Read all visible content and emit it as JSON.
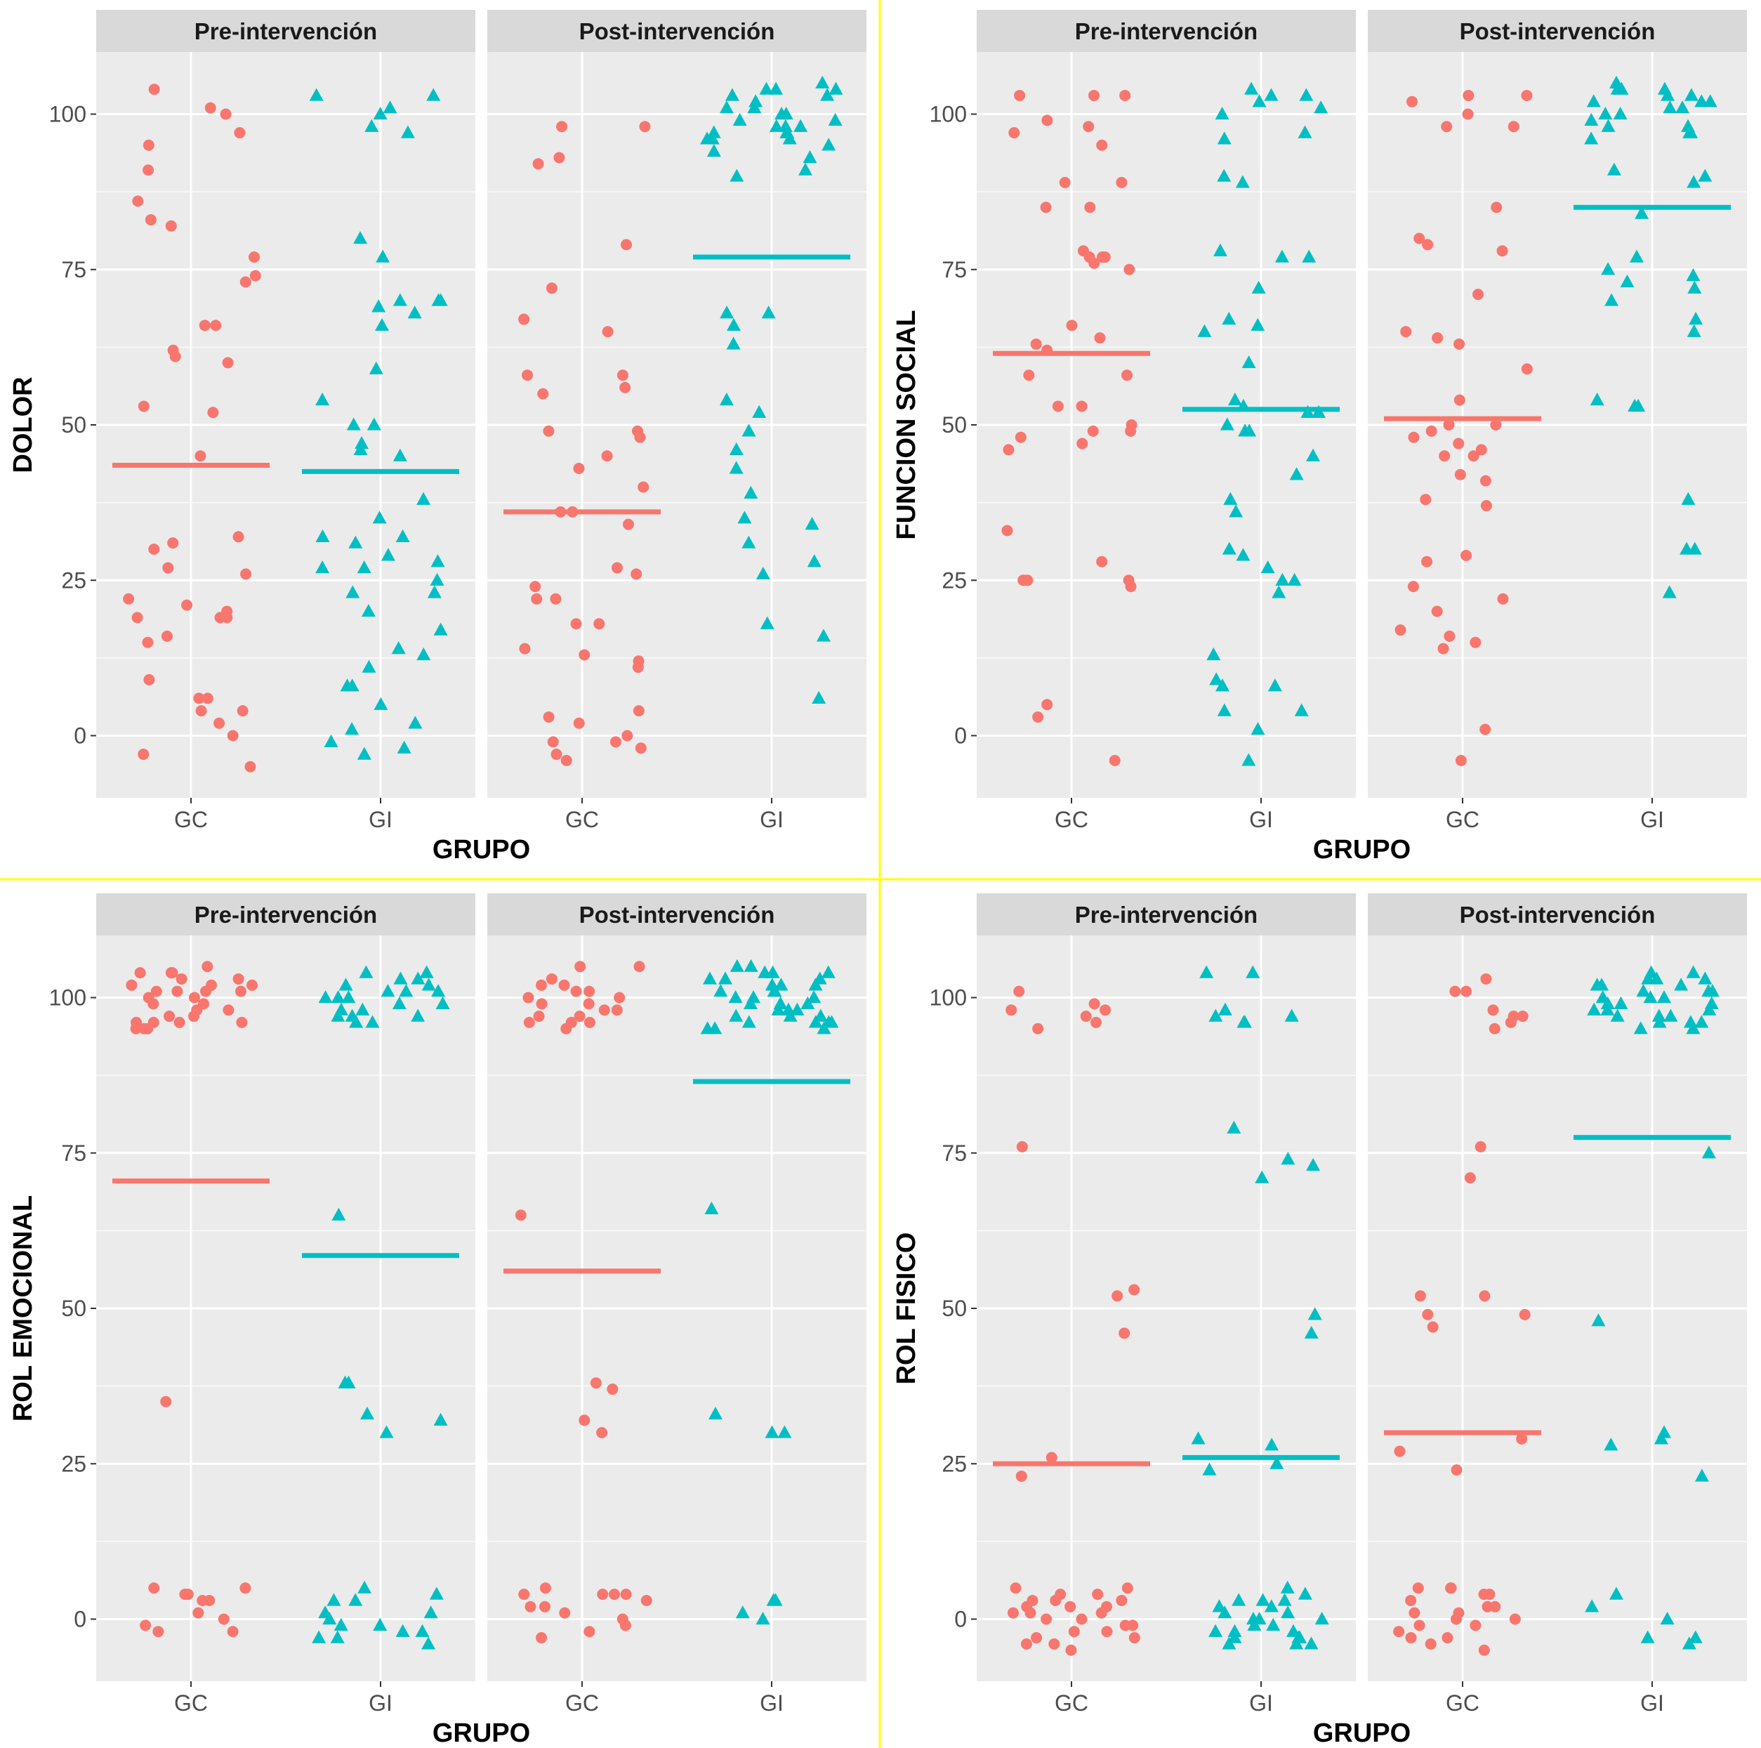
{
  "colors": {
    "GC": "#F8766D",
    "GI": "#00BFC4",
    "divider": "#FFFF00",
    "panel": "#EBEBEB",
    "strip": "#D9D9D9",
    "grid": "#FFFFFF"
  },
  "chart_data": [
    {
      "type": "scatter",
      "ylabel": "DOLOR",
      "xlabel": "GRUPO",
      "facets": [
        "Pre-intervención",
        "Post-intervención"
      ],
      "categories": [
        "GC",
        "GI"
      ],
      "y_ticks": [
        0,
        25,
        50,
        75,
        100
      ],
      "ylim": [
        -10,
        110
      ],
      "series": [
        {
          "facet": "Pre-intervención",
          "group": "GC",
          "marker": "circle",
          "mean": 43.5,
          "values": [
            104,
            101,
            100,
            97,
            95,
            91,
            86,
            83,
            82,
            77,
            74,
            73,
            66,
            66,
            62,
            61,
            60,
            53,
            52,
            45,
            32,
            31,
            30,
            27,
            26,
            22,
            21,
            20,
            19,
            19,
            19,
            16,
            15,
            9,
            6,
            6,
            4,
            4,
            2,
            0,
            -3,
            -5
          ]
        },
        {
          "facet": "Pre-intervención",
          "group": "GI",
          "marker": "triangle",
          "mean": 42.5,
          "values": [
            103,
            103,
            101,
            100,
            98,
            97,
            80,
            77,
            70,
            70,
            70,
            69,
            68,
            66,
            59,
            54,
            50,
            50,
            47,
            46,
            45,
            38,
            35,
            32,
            32,
            31,
            29,
            28,
            27,
            27,
            25,
            23,
            23,
            20,
            17,
            14,
            13,
            11,
            8,
            8,
            5,
            2,
            1,
            -1,
            -2,
            -3
          ]
        },
        {
          "facet": "Post-intervención",
          "group": "GC",
          "marker": "circle",
          "mean": 36,
          "values": [
            98,
            98,
            93,
            92,
            79,
            72,
            67,
            65,
            58,
            58,
            56,
            55,
            49,
            49,
            48,
            45,
            43,
            40,
            36,
            36,
            34,
            27,
            26,
            24,
            22,
            22,
            18,
            18,
            14,
            13,
            12,
            11,
            4,
            3,
            2,
            0,
            -1,
            -1,
            -2,
            -3,
            -4
          ]
        },
        {
          "facet": "Post-intervención",
          "group": "GI",
          "marker": "triangle",
          "mean": 77,
          "values": [
            105,
            104,
            104,
            104,
            103,
            103,
            102,
            101,
            101,
            100,
            100,
            99,
            99,
            98,
            98,
            98,
            97,
            97,
            97,
            96,
            96,
            96,
            95,
            94,
            93,
            91,
            90,
            68,
            68,
            66,
            63,
            54,
            52,
            49,
            46,
            43,
            39,
            35,
            34,
            31,
            28,
            26,
            18,
            16,
            6
          ]
        }
      ]
    },
    {
      "type": "scatter",
      "ylabel": "FUNCION SOCIAL",
      "xlabel": "GRUPO",
      "facets": [
        "Pre-intervención",
        "Post-intervención"
      ],
      "categories": [
        "GC",
        "GI"
      ],
      "y_ticks": [
        0,
        25,
        50,
        75,
        100
      ],
      "ylim": [
        -10,
        110
      ],
      "series": [
        {
          "facet": "Pre-intervención",
          "group": "GC",
          "marker": "circle",
          "mean": 61.5,
          "values": [
            103,
            103,
            103,
            99,
            98,
            97,
            95,
            89,
            89,
            85,
            85,
            78,
            77,
            77,
            77,
            76,
            75,
            66,
            64,
            63,
            62,
            58,
            58,
            53,
            53,
            50,
            49,
            49,
            48,
            47,
            46,
            33,
            28,
            25,
            25,
            25,
            24,
            5,
            3,
            -4
          ]
        },
        {
          "facet": "Pre-intervención",
          "group": "GI",
          "marker": "triangle",
          "mean": 52.5,
          "values": [
            104,
            103,
            103,
            102,
            101,
            100,
            97,
            96,
            90,
            89,
            78,
            77,
            77,
            72,
            67,
            66,
            65,
            60,
            54,
            53,
            52,
            52,
            50,
            49,
            49,
            45,
            42,
            38,
            36,
            30,
            29,
            27,
            25,
            25,
            23,
            13,
            9,
            8,
            8,
            4,
            4,
            1,
            -4
          ]
        },
        {
          "facet": "Post-intervención",
          "group": "GC",
          "marker": "circle",
          "mean": 51,
          "values": [
            103,
            103,
            102,
            100,
            98,
            98,
            85,
            80,
            79,
            78,
            71,
            65,
            64,
            63,
            59,
            54,
            50,
            50,
            49,
            48,
            47,
            46,
            45,
            45,
            42,
            41,
            38,
            37,
            29,
            28,
            24,
            22,
            20,
            17,
            16,
            15,
            14,
            1,
            -4
          ]
        },
        {
          "facet": "Post-intervención",
          "group": "GI",
          "marker": "triangle",
          "mean": 85,
          "values": [
            105,
            104,
            104,
            104,
            103,
            103,
            102,
            102,
            102,
            101,
            101,
            100,
            100,
            99,
            98,
            98,
            97,
            97,
            96,
            91,
            90,
            89,
            84,
            77,
            75,
            74,
            73,
            72,
            70,
            67,
            65,
            54,
            53,
            53,
            38,
            30,
            30,
            23
          ]
        }
      ]
    },
    {
      "type": "scatter",
      "ylabel": "ROL EMOCIONAL",
      "xlabel": "GRUPO",
      "facets": [
        "Pre-intervención",
        "Post-intervención"
      ],
      "categories": [
        "GC",
        "GI"
      ],
      "y_ticks": [
        0,
        25,
        50,
        75,
        100
      ],
      "ylim": [
        -10,
        110
      ],
      "series": [
        {
          "facet": "Pre-intervención",
          "group": "GC",
          "marker": "circle",
          "mean": 70.5,
          "values": [
            105,
            104,
            104,
            104,
            103,
            103,
            102,
            102,
            102,
            101,
            101,
            101,
            101,
            100,
            100,
            99,
            99,
            98,
            98,
            97,
            97,
            96,
            96,
            96,
            96,
            95,
            95,
            95,
            35,
            5,
            5,
            4,
            4,
            3,
            3,
            1,
            0,
            -1,
            -2,
            -2
          ]
        },
        {
          "facet": "Pre-intervención",
          "group": "GI",
          "marker": "triangle",
          "mean": 58.5,
          "values": [
            104,
            104,
            103,
            103,
            102,
            102,
            101,
            101,
            101,
            100,
            100,
            100,
            99,
            99,
            98,
            98,
            97,
            97,
            97,
            96,
            96,
            65,
            38,
            38,
            33,
            32,
            30,
            5,
            4,
            3,
            3,
            1,
            1,
            0,
            -1,
            -1,
            -2,
            -2,
            -3,
            -3,
            -4
          ]
        },
        {
          "facet": "Post-intervención",
          "group": "GC",
          "marker": "circle",
          "mean": 56,
          "values": [
            105,
            105,
            103,
            102,
            102,
            101,
            101,
            100,
            100,
            99,
            99,
            98,
            98,
            97,
            97,
            96,
            96,
            96,
            95,
            65,
            38,
            37,
            32,
            30,
            5,
            4,
            4,
            4,
            4,
            3,
            2,
            2,
            1,
            0,
            -1,
            -2,
            -3
          ]
        },
        {
          "facet": "Post-intervención",
          "group": "GI",
          "marker": "triangle",
          "mean": 86.5,
          "values": [
            105,
            105,
            104,
            104,
            104,
            103,
            103,
            103,
            102,
            102,
            102,
            101,
            101,
            101,
            100,
            100,
            100,
            99,
            99,
            99,
            98,
            98,
            98,
            97,
            97,
            97,
            96,
            96,
            96,
            96,
            95,
            95,
            95,
            66,
            33,
            30,
            30,
            3,
            3,
            1,
            0
          ]
        }
      ]
    },
    {
      "type": "scatter",
      "ylabel": "ROL FISICO",
      "xlabel": "GRUPO",
      "facets": [
        "Pre-intervención",
        "Post-intervención"
      ],
      "categories": [
        "GC",
        "GI"
      ],
      "y_ticks": [
        0,
        25,
        50,
        75,
        100
      ],
      "ylim": [
        -10,
        110
      ],
      "series": [
        {
          "facet": "Pre-intervención",
          "group": "GC",
          "marker": "circle",
          "mean": 25,
          "values": [
            101,
            99,
            98,
            98,
            97,
            96,
            95,
            76,
            53,
            52,
            46,
            26,
            23,
            5,
            5,
            4,
            4,
            3,
            3,
            3,
            2,
            2,
            2,
            1,
            1,
            1,
            0,
            0,
            -1,
            -1,
            -2,
            -2,
            -3,
            -3,
            -4,
            -4,
            -5
          ]
        },
        {
          "facet": "Pre-intervención",
          "group": "GI",
          "marker": "triangle",
          "mean": 26,
          "values": [
            104,
            104,
            98,
            97,
            97,
            96,
            96,
            79,
            74,
            73,
            71,
            49,
            46,
            29,
            28,
            25,
            24,
            5,
            4,
            3,
            3,
            3,
            2,
            2,
            1,
            1,
            0,
            0,
            0,
            -1,
            -1,
            -2,
            -2,
            -2,
            -3,
            -3,
            -3,
            -4,
            -4,
            -4
          ]
        },
        {
          "facet": "Post-intervención",
          "group": "GC",
          "marker": "circle",
          "mean": 30,
          "values": [
            103,
            101,
            101,
            98,
            97,
            97,
            96,
            95,
            76,
            71,
            52,
            52,
            49,
            49,
            47,
            29,
            27,
            24,
            5,
            5,
            5,
            4,
            4,
            3,
            2,
            2,
            1,
            1,
            0,
            0,
            -1,
            -1,
            -2,
            -3,
            -3,
            -4,
            -5
          ]
        },
        {
          "facet": "Post-intervención",
          "group": "GI",
          "marker": "triangle",
          "mean": 77.5,
          "values": [
            104,
            104,
            103,
            103,
            103,
            102,
            102,
            102,
            101,
            101,
            101,
            100,
            100,
            100,
            99,
            99,
            99,
            98,
            98,
            98,
            97,
            97,
            97,
            96,
            96,
            96,
            95,
            95,
            75,
            48,
            30,
            29,
            28,
            23,
            4,
            2,
            0,
            -3,
            -3,
            -4
          ]
        }
      ]
    }
  ]
}
